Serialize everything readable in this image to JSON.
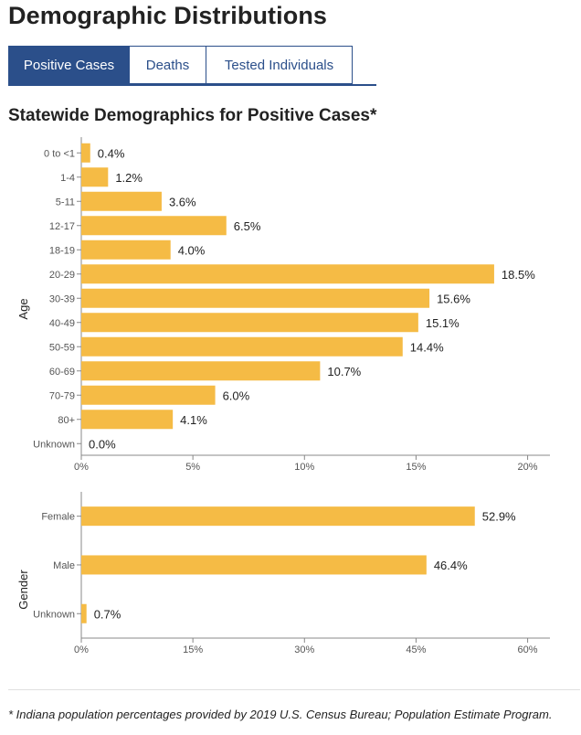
{
  "page": {
    "title": "Demographic Distributions",
    "tabs": [
      {
        "label": "Positive Cases",
        "active": true
      },
      {
        "label": "Deaths",
        "active": false
      },
      {
        "label": "Tested Individuals",
        "active": false
      }
    ],
    "section_title": "Statewide Demographics for Positive Cases*",
    "footnote": "* Indiana population percentages provided by 2019 U.S. Census Bureau; Population Estimate Program."
  },
  "colors": {
    "bar": "#f5bb45",
    "tab_active": "#2b4f8a",
    "axis": "#888888"
  },
  "chart_data": [
    {
      "type": "bar",
      "orientation": "horizontal",
      "ylabel": "Age",
      "categories": [
        "0 to <1",
        "1-4",
        "5-11",
        "12-17",
        "18-19",
        "20-29",
        "30-39",
        "40-49",
        "50-59",
        "60-69",
        "70-79",
        "80+",
        "Unknown"
      ],
      "values": [
        0.4,
        1.2,
        3.6,
        6.5,
        4.0,
        18.5,
        15.6,
        15.1,
        14.4,
        10.7,
        6.0,
        4.1,
        0.0
      ],
      "value_labels": [
        "0.4%",
        "1.2%",
        "3.6%",
        "6.5%",
        "4.0%",
        "18.5%",
        "15.6%",
        "15.1%",
        "14.4%",
        "10.7%",
        "6.0%",
        "4.1%",
        "0.0%"
      ],
      "xlim": [
        0,
        21
      ],
      "xticks": [
        0,
        5,
        10,
        15,
        20
      ],
      "xtick_labels": [
        "0%",
        "5%",
        "10%",
        "15%",
        "20%"
      ],
      "grid": false
    },
    {
      "type": "bar",
      "orientation": "horizontal",
      "ylabel": "Gender",
      "categories": [
        "Female",
        "Male",
        "Unknown"
      ],
      "values": [
        52.9,
        46.4,
        0.7
      ],
      "value_labels": [
        "52.9%",
        "46.4%",
        "0.7%"
      ],
      "xlim": [
        0,
        63
      ],
      "xticks": [
        0,
        15,
        30,
        45,
        60
      ],
      "xtick_labels": [
        "0%",
        "15%",
        "30%",
        "45%",
        "60%"
      ],
      "grid": false
    }
  ]
}
